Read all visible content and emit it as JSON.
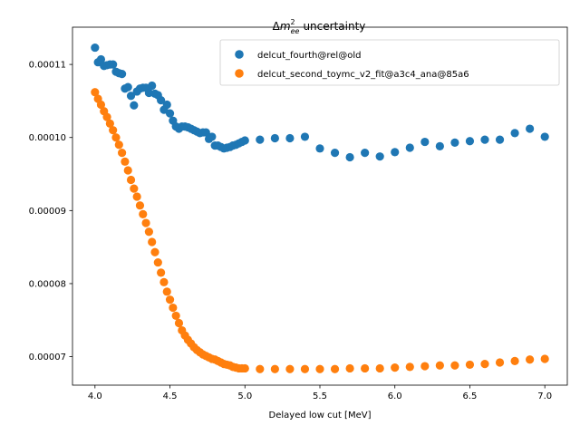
{
  "chart_data": {
    "type": "scatter",
    "title": "Δm²_ee uncertainty",
    "title_parts": {
      "delta": "Δ",
      "m": "m",
      "sup": "2",
      "sub": "ee",
      "rest": "uncertainty"
    },
    "xlabel": "Delayed low cut [MeV]",
    "ylabel": "",
    "xlim": [
      3.85,
      7.15
    ],
    "ylim": [
      6.61e-05,
      0.0001151
    ],
    "x_ticks": [
      4.0,
      4.5,
      5.0,
      5.5,
      6.0,
      6.5,
      7.0
    ],
    "x_tick_labels": [
      "4.0",
      "4.5",
      "5.0",
      "5.5",
      "6.0",
      "6.5",
      "7.0"
    ],
    "y_ticks": [
      7e-05,
      8e-05,
      9e-05,
      0.0001,
      0.00011
    ],
    "y_tick_labels": [
      "0.00007",
      "0.00008",
      "0.00009",
      "0.00010",
      "0.00011"
    ],
    "legend_position": "top-right",
    "grid": false,
    "series": [
      {
        "name": "delcut_fourth@rel@old",
        "color": "#1f77b4",
        "x": [
          4.0,
          4.02,
          4.04,
          4.06,
          4.08,
          4.1,
          4.12,
          4.14,
          4.16,
          4.18,
          4.2,
          4.22,
          4.24,
          4.26,
          4.28,
          4.3,
          4.32,
          4.34,
          4.36,
          4.38,
          4.4,
          4.42,
          4.44,
          4.46,
          4.48,
          4.5,
          4.52,
          4.54,
          4.56,
          4.58,
          4.6,
          4.62,
          4.64,
          4.66,
          4.68,
          4.7,
          4.72,
          4.74,
          4.76,
          4.78,
          4.8,
          4.82,
          4.84,
          4.86,
          4.88,
          4.9,
          4.92,
          4.94,
          4.96,
          4.98,
          5.0,
          5.1,
          5.2,
          5.3,
          5.4,
          5.5,
          5.6,
          5.7,
          5.8,
          5.9,
          6.0,
          6.1,
          6.2,
          6.3,
          6.4,
          6.5,
          6.6,
          6.7,
          6.8,
          6.9,
          7.0
        ],
        "y": [
          0.0001123,
          0.0001103,
          0.0001107,
          0.0001098,
          0.0001099,
          0.00011,
          0.00011,
          0.000109,
          0.0001088,
          0.0001087,
          0.0001067,
          0.0001069,
          0.0001057,
          0.0001044,
          0.0001063,
          0.0001067,
          0.0001068,
          0.0001068,
          0.0001061,
          0.0001071,
          0.000106,
          0.0001058,
          0.0001051,
          0.0001038,
          0.0001045,
          0.0001033,
          0.0001023,
          0.0001015,
          0.0001012,
          0.0001015,
          0.0001015,
          0.0001014,
          0.0001012,
          0.000101,
          0.0001008,
          0.0001006,
          0.0001007,
          0.0001007,
          9.98e-05,
          0.0001001,
          9.89e-05,
          9.89e-05,
          9.87e-05,
          9.85e-05,
          9.86e-05,
          9.87e-05,
          9.89e-05,
          9.9e-05,
          9.92e-05,
          9.94e-05,
          9.96e-05,
          9.97e-05,
          9.99e-05,
          9.99e-05,
          0.0001001,
          9.85e-05,
          9.79e-05,
          9.73e-05,
          9.79e-05,
          9.74e-05,
          9.8e-05,
          9.86e-05,
          9.94e-05,
          9.88e-05,
          9.93e-05,
          9.95e-05,
          9.97e-05,
          9.97e-05,
          0.0001006,
          0.0001012,
          0.0001001
        ]
      },
      {
        "name": "delcut_second_toymc_v2_fit@a3c4_ana@85a6",
        "color": "#ff7f0e",
        "x": [
          4.0,
          4.02,
          4.04,
          4.06,
          4.08,
          4.1,
          4.12,
          4.14,
          4.16,
          4.18,
          4.2,
          4.22,
          4.24,
          4.26,
          4.28,
          4.3,
          4.32,
          4.34,
          4.36,
          4.38,
          4.4,
          4.42,
          4.44,
          4.46,
          4.48,
          4.5,
          4.52,
          4.54,
          4.56,
          4.58,
          4.6,
          4.62,
          4.64,
          4.66,
          4.68,
          4.7,
          4.72,
          4.74,
          4.76,
          4.78,
          4.8,
          4.82,
          4.84,
          4.86,
          4.88,
          4.9,
          4.92,
          4.94,
          4.96,
          4.98,
          5.0,
          5.1,
          5.2,
          5.3,
          5.4,
          5.5,
          5.6,
          5.7,
          5.8,
          5.9,
          6.0,
          6.1,
          6.2,
          6.3,
          6.4,
          6.5,
          6.6,
          6.7,
          6.8,
          6.9,
          7.0
        ],
        "y": [
          0.0001062,
          0.0001053,
          0.0001045,
          0.0001036,
          0.0001028,
          0.0001019,
          0.000101,
          0.0001,
          9.9e-05,
          9.79e-05,
          9.67e-05,
          9.55e-05,
          9.42e-05,
          9.3e-05,
          9.19e-05,
          9.07e-05,
          8.95e-05,
          8.83e-05,
          8.71e-05,
          8.57e-05,
          8.43e-05,
          8.29e-05,
          8.15e-05,
          8.02e-05,
          7.89e-05,
          7.78e-05,
          7.67e-05,
          7.56e-05,
          7.46e-05,
          7.36e-05,
          7.29e-05,
          7.23e-05,
          7.18e-05,
          7.13e-05,
          7.09e-05,
          7.06e-05,
          7.03e-05,
          7.01e-05,
          6.99e-05,
          6.97e-05,
          6.96e-05,
          6.94e-05,
          6.92e-05,
          6.9e-05,
          6.89e-05,
          6.88e-05,
          6.86e-05,
          6.85e-05,
          6.84e-05,
          6.84e-05,
          6.84e-05,
          6.83e-05,
          6.83e-05,
          6.83e-05,
          6.83e-05,
          6.83e-05,
          6.83e-05,
          6.84e-05,
          6.84e-05,
          6.84e-05,
          6.85e-05,
          6.86e-05,
          6.87e-05,
          6.88e-05,
          6.88e-05,
          6.89e-05,
          6.9e-05,
          6.92e-05,
          6.94e-05,
          6.96e-05,
          6.97e-05
        ]
      }
    ]
  }
}
